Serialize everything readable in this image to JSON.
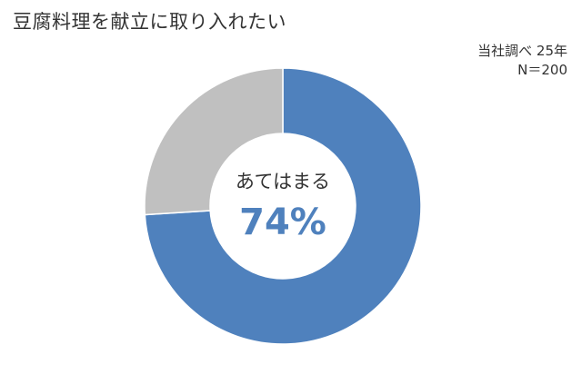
{
  "chart_data": {
    "type": "pie",
    "title": "豆腐料理を献立に取り入れたい",
    "note_lines": [
      "当社調べ 25年",
      "N＝200"
    ],
    "slices": [
      {
        "label": "あてはまる",
        "value": 74,
        "color": "#4f81bd"
      },
      {
        "value": 26,
        "color": "#c0c0c0"
      }
    ],
    "center": {
      "label": "あてはまる",
      "value_text": "74%"
    }
  }
}
